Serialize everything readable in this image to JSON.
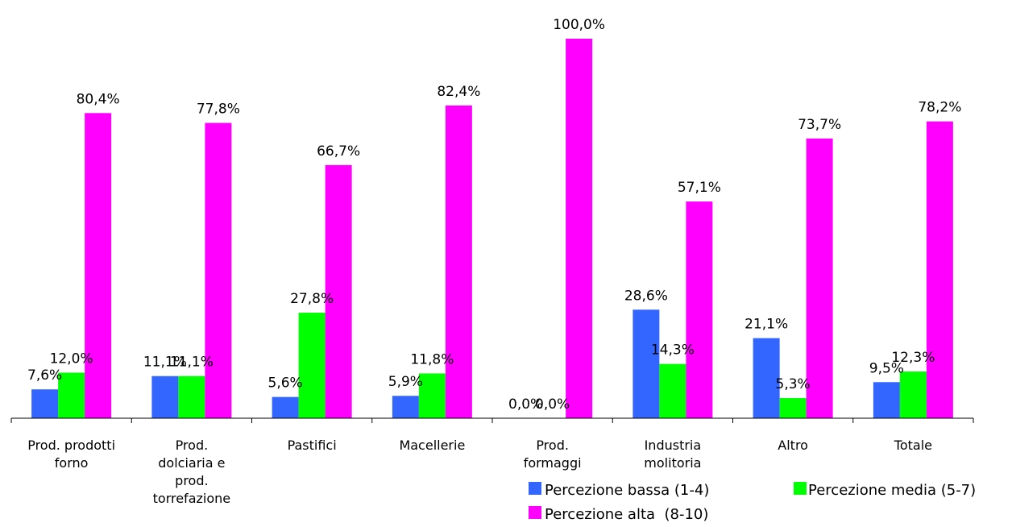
{
  "chart_data": {
    "type": "bar",
    "categories": [
      [
        "Prod. prodotti",
        "forno"
      ],
      [
        "Prod.",
        "dolciaria e",
        "prod.",
        "torrefazione"
      ],
      [
        "Pastifici"
      ],
      [
        "Macellerie"
      ],
      [
        "Prod.",
        "formaggi"
      ],
      [
        "Industria",
        "molitoria"
      ],
      [
        "Altro"
      ],
      [
        "Totale"
      ]
    ],
    "series": [
      {
        "name": "Percezione bassa (1-4)",
        "color": "#3366ff",
        "values": [
          7.6,
          11.1,
          5.6,
          5.9,
          0.0,
          28.6,
          21.1,
          9.5
        ],
        "labels": [
          "7,6%",
          "11,1%",
          "5,6%",
          "5,9%",
          "0,0%",
          "28,6%",
          "21,1%",
          "9,5%"
        ]
      },
      {
        "name": "Percezione media (5-7)",
        "color": "#00ff00",
        "values": [
          12.0,
          11.1,
          27.8,
          11.8,
          0.0,
          14.3,
          5.3,
          12.3
        ],
        "labels": [
          "12,0%",
          "11,1%",
          "27,8%",
          "11,8%",
          "0,0%",
          "14,3%",
          "5,3%",
          "12,3%"
        ]
      },
      {
        "name": "Percezione alta  (8-10)",
        "color": "#ff00ff",
        "values": [
          80.4,
          77.8,
          66.7,
          82.4,
          100.0,
          57.1,
          73.7,
          78.2
        ],
        "labels": [
          "80,4%",
          "77,8%",
          "66,7%",
          "82,4%",
          "100,0%",
          "57,1%",
          "73,7%",
          "78,2%"
        ]
      }
    ],
    "ylim": [
      0,
      100
    ],
    "grid": false,
    "legend": "bottom-right"
  }
}
